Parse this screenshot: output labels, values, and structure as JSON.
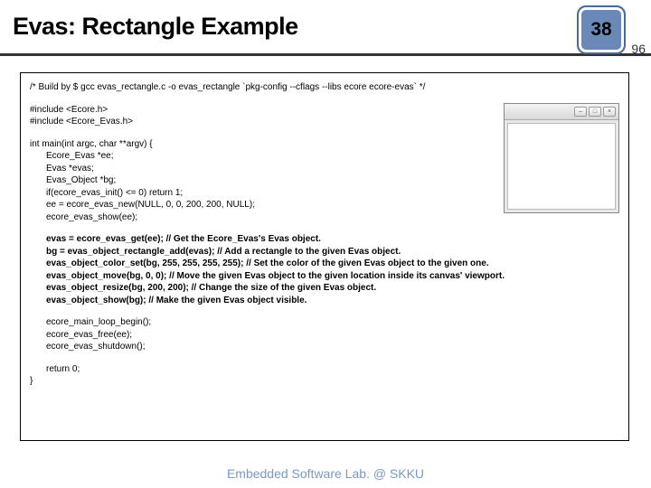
{
  "header": {
    "title": "Evas: Rectangle Example",
    "badge_number": "38",
    "badge_bg": "#6a89b8",
    "badge_border": "#4a6a9a",
    "page_total": "96"
  },
  "code": {
    "build_comment": "/* Build by $ gcc evas_rectangle.c -o evas_rectangle `pkg-config --cflags --libs ecore ecore-evas` */",
    "includes": [
      "#include <Ecore.h>",
      "#include <Ecore_Evas.h>"
    ],
    "main_sig": "int main(int argc, char **argv) {",
    "setup": [
      "Ecore_Evas *ee;",
      "Evas *evas;",
      "Evas_Object *bg;",
      "if(ecore_evas_init() <= 0) return 1;",
      "ee = ecore_evas_new(NULL, 0, 0, 200, 200, NULL);",
      "ecore_evas_show(ee);"
    ],
    "bold_block": [
      "evas = ecore_evas_get(ee); // Get the Ecore_Evas's Evas object.",
      "bg = evas_object_rectangle_add(evas); // Add a rectangle to the given Evas object.",
      "evas_object_color_set(bg, 255, 255, 255, 255); // Set the color of the given Evas object to the given one.",
      "evas_object_move(bg, 0, 0); // Move the given Evas object to the given location inside its canvas' viewport.",
      "evas_object_resize(bg, 200, 200); // Change the size of the given Evas object.",
      "evas_object_show(bg); // Make the given Evas object visible."
    ],
    "teardown": [
      "ecore_main_loop_begin();",
      "ecore_evas_free(ee);",
      "ecore_evas_shutdown();"
    ],
    "return_line": "return 0;",
    "close_brace": "}"
  },
  "footer": {
    "text": "Embedded Software Lab. @ SKKU",
    "color": "#7a97c4"
  },
  "colors": {
    "header_rule": "#333333",
    "content_border": "#000000",
    "background": "#ffffff"
  }
}
